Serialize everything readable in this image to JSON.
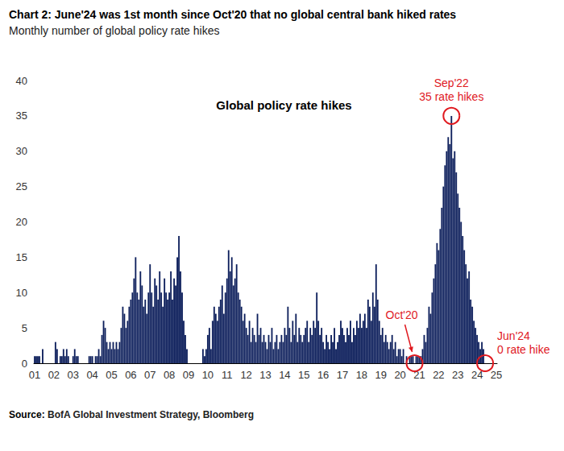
{
  "chart_data": {
    "type": "bar",
    "title": "Chart 2: June'24 was 1st month since Oct'20 that no global central bank hiked rates",
    "subtitle": "Monthly number of global policy rate hikes",
    "source": "Source: BofA Global Investment Strategy, Bloomberg",
    "annotations": [
      "Sep'22\n35 rate hikes",
      "Oct'20",
      "Jun'24\n0 rate hike"
    ],
    "legend": "top",
    "grid": false,
    "ylim": [
      0,
      40
    ],
    "yticks": [
      0,
      5,
      10,
      15,
      20,
      25,
      30,
      35,
      40
    ],
    "categories": [
      "01",
      null,
      null,
      null,
      null,
      null,
      null,
      null,
      null,
      null,
      null,
      null,
      "02",
      null,
      null,
      null,
      null,
      null,
      null,
      null,
      null,
      null,
      null,
      null,
      "03",
      null,
      null,
      null,
      null,
      null,
      null,
      null,
      null,
      null,
      null,
      null,
      "04",
      null,
      null,
      null,
      null,
      null,
      null,
      null,
      null,
      null,
      null,
      null,
      "05",
      null,
      null,
      null,
      null,
      null,
      null,
      null,
      null,
      null,
      null,
      null,
      "06",
      null,
      null,
      null,
      null,
      null,
      null,
      null,
      null,
      null,
      null,
      null,
      "07",
      null,
      null,
      null,
      null,
      null,
      null,
      null,
      null,
      null,
      null,
      null,
      "08",
      null,
      null,
      null,
      null,
      null,
      null,
      null,
      null,
      null,
      null,
      null,
      "09",
      null,
      null,
      null,
      null,
      null,
      null,
      null,
      null,
      null,
      null,
      null,
      "10",
      null,
      null,
      null,
      null,
      null,
      null,
      null,
      null,
      null,
      null,
      null,
      "11",
      null,
      null,
      null,
      null,
      null,
      null,
      null,
      null,
      null,
      null,
      null,
      "12",
      null,
      null,
      null,
      null,
      null,
      null,
      null,
      null,
      null,
      null,
      null,
      "13",
      null,
      null,
      null,
      null,
      null,
      null,
      null,
      null,
      null,
      null,
      null,
      "14",
      null,
      null,
      null,
      null,
      null,
      null,
      null,
      null,
      null,
      null,
      null,
      "15",
      null,
      null,
      null,
      null,
      null,
      null,
      null,
      null,
      null,
      null,
      null,
      "16",
      null,
      null,
      null,
      null,
      null,
      null,
      null,
      null,
      null,
      null,
      null,
      "17",
      null,
      null,
      null,
      null,
      null,
      null,
      null,
      null,
      null,
      null,
      null,
      "18",
      null,
      null,
      null,
      null,
      null,
      null,
      null,
      null,
      null,
      null,
      null,
      "19",
      null,
      null,
      null,
      null,
      null,
      null,
      null,
      null,
      null,
      null,
      null,
      "20",
      null,
      null,
      null,
      null,
      null,
      null,
      null,
      null,
      null,
      null,
      null,
      "21",
      null,
      null,
      null,
      null,
      null,
      null,
      null,
      null,
      null,
      null,
      null,
      "22",
      null,
      null,
      null,
      null,
      null,
      null,
      null,
      null,
      null,
      null,
      null,
      "23",
      null,
      null,
      null,
      null,
      null,
      null,
      null,
      null,
      null,
      null,
      null,
      "24",
      null,
      null,
      null,
      null,
      null,
      null,
      null,
      null,
      null,
      null,
      null,
      "25"
    ],
    "series": [
      {
        "name": "Global policy rate hikes",
        "color": "#0c1e5b",
        "values": [
          1,
          1,
          1,
          1,
          0,
          2,
          0,
          0,
          0,
          0,
          0,
          0,
          0,
          3,
          2,
          0,
          1,
          1,
          2,
          1,
          2,
          1,
          0,
          0,
          1,
          2,
          1,
          1,
          0,
          0,
          0,
          0,
          0,
          0,
          1,
          1,
          1,
          0,
          1,
          1,
          2,
          1,
          4,
          6,
          5,
          3,
          2,
          3,
          2,
          3,
          2,
          3,
          2,
          3,
          5,
          8,
          7,
          5,
          6,
          8,
          9,
          10,
          12,
          15,
          10,
          9,
          13,
          11,
          8,
          9,
          7,
          10,
          14,
          10,
          8,
          12,
          11,
          9,
          13,
          10,
          8,
          12,
          10,
          9,
          10,
          13,
          9,
          12,
          11,
          15,
          18,
          13,
          10,
          6,
          4,
          2,
          0,
          0,
          0,
          0,
          0,
          0,
          0,
          0,
          0,
          2,
          1,
          2,
          4,
          5,
          2,
          6,
          8,
          7,
          6,
          8,
          9,
          11,
          7,
          10,
          12,
          16,
          13,
          15,
          11,
          12,
          14,
          10,
          9,
          8,
          6,
          7,
          5,
          4,
          6,
          3,
          5,
          4,
          3,
          7,
          4,
          5,
          3,
          4,
          3,
          2,
          4,
          3,
          5,
          2,
          3,
          4,
          2,
          3,
          4,
          3,
          5,
          4,
          8,
          5,
          3,
          6,
          4,
          7,
          3,
          5,
          4,
          3,
          4,
          5,
          6,
          3,
          5,
          4,
          6,
          5,
          10,
          6,
          4,
          5,
          3,
          2,
          4,
          3,
          2,
          4,
          3,
          5,
          2,
          3,
          4,
          6,
          5,
          4,
          3,
          5,
          4,
          6,
          3,
          5,
          4,
          6,
          5,
          7,
          5,
          6,
          7,
          5,
          9,
          8,
          6,
          10,
          8,
          14,
          9,
          6,
          4,
          5,
          3,
          4,
          3,
          2,
          3,
          4,
          2,
          3,
          1,
          2,
          2,
          1,
          2,
          0,
          1,
          0,
          1,
          1,
          1,
          0,
          1,
          1,
          1,
          1,
          2,
          4,
          3,
          5,
          8,
          7,
          10,
          12,
          14,
          17,
          16,
          19,
          22,
          25,
          28,
          30,
          32,
          31,
          35,
          29,
          30,
          27,
          24,
          22,
          20,
          18,
          16,
          14,
          12,
          13,
          9,
          8,
          6,
          5,
          4,
          3,
          2,
          3,
          2,
          0,
          null,
          null,
          null,
          null,
          null,
          null,
          null
        ]
      }
    ]
  }
}
